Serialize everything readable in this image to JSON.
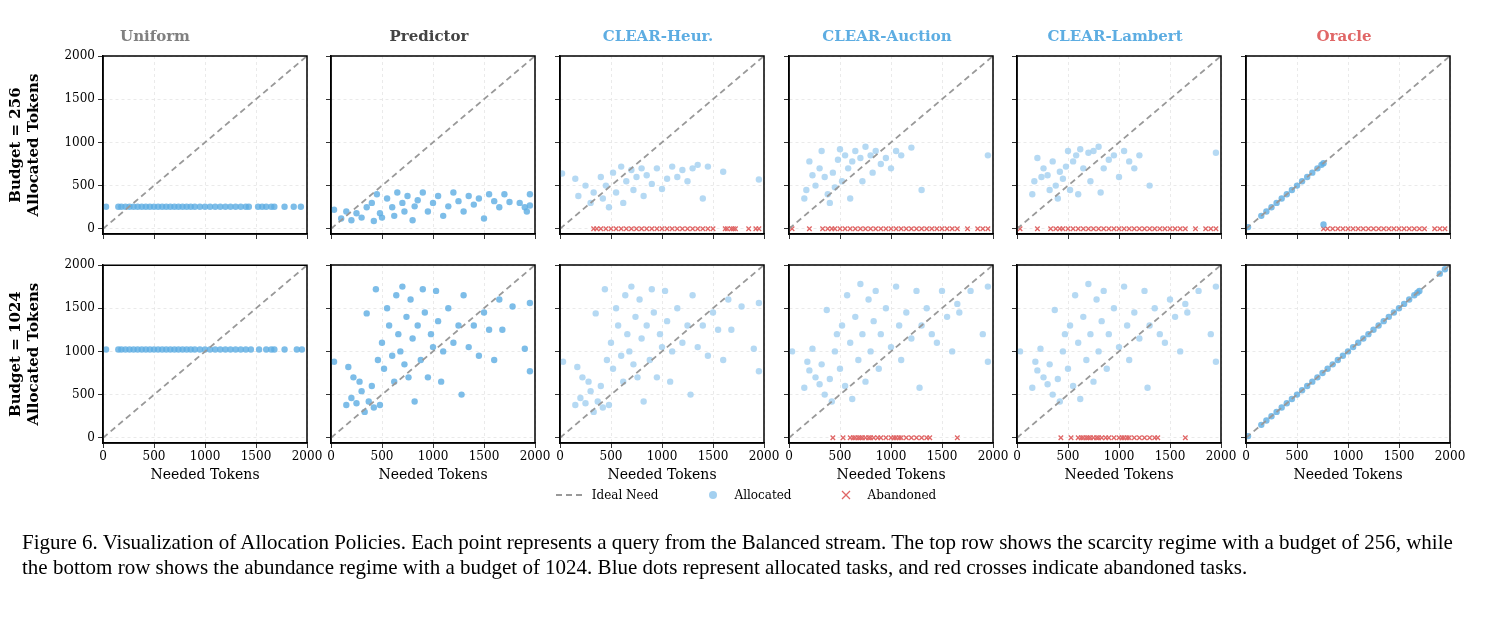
{
  "chart_data": [
    {
      "type": "scatter",
      "title": "Uniform",
      "ylabel": "Budget = 256\nAllocated Tokens",
      "xlim": [
        0,
        2000
      ],
      "ylim": [
        -60,
        2000
      ],
      "xticks": [
        0,
        500,
        1000,
        1500,
        2000
      ],
      "yticks": [
        0,
        500,
        1000,
        1500,
        2000
      ],
      "grid": true,
      "tick_labels": "y",
      "series": [
        {
          "type": "line",
          "color": "#999999",
          "line_style": "dashed",
          "marker": "none",
          "x": [
            0,
            2000
          ],
          "values": [
            0,
            2000
          ]
        },
        {
          "type": "scatter",
          "color": "#5dade2",
          "marker": "circle",
          "x": [
            30,
            150,
            180,
            220,
            260,
            300,
            340,
            380,
            420,
            460,
            500,
            540,
            580,
            620,
            660,
            700,
            740,
            780,
            820,
            860,
            900,
            950,
            1000,
            1050,
            1100,
            1150,
            1200,
            1250,
            1300,
            1350,
            1400,
            1430,
            1520,
            1560,
            1600,
            1650,
            1680,
            1780,
            1870,
            1940
          ],
          "values": [
            256,
            256,
            256,
            256,
            256,
            256,
            256,
            256,
            256,
            256,
            256,
            256,
            256,
            256,
            256,
            256,
            256,
            256,
            256,
            256,
            256,
            256,
            256,
            256,
            256,
            256,
            256,
            256,
            256,
            256,
            256,
            256,
            256,
            256,
            256,
            256,
            256,
            256,
            256,
            256
          ]
        }
      ]
    },
    {
      "type": "scatter",
      "title": "Predictor",
      "xlim": [
        0,
        2000
      ],
      "ylim": [
        -60,
        2000
      ],
      "xticks": [
        0,
        500,
        1000,
        1500,
        2000
      ],
      "yticks": [
        0,
        500,
        1000,
        1500,
        2000
      ],
      "grid": true,
      "tick_labels": false,
      "series": [
        {
          "type": "line",
          "color": "#999999",
          "line_style": "dashed",
          "marker": "none",
          "x": [
            0,
            2000
          ],
          "values": [
            0,
            2000
          ]
        },
        {
          "type": "scatter",
          "color": "#5dade2",
          "marker": "circle",
          "x": [
            30,
            100,
            150,
            200,
            250,
            300,
            350,
            400,
            420,
            450,
            480,
            500,
            550,
            600,
            620,
            650,
            700,
            720,
            750,
            800,
            820,
            850,
            900,
            950,
            1000,
            1050,
            1100,
            1150,
            1200,
            1250,
            1300,
            1350,
            1400,
            1450,
            1500,
            1550,
            1600,
            1650,
            1700,
            1750,
            1850,
            1900,
            1920,
            1950,
            1950
          ],
          "values": [
            220,
            120,
            200,
            100,
            180,
            130,
            250,
            300,
            90,
            400,
            180,
            130,
            350,
            250,
            150,
            420,
            300,
            200,
            380,
            100,
            260,
            330,
            420,
            200,
            300,
            380,
            150,
            260,
            420,
            320,
            200,
            380,
            280,
            350,
            120,
            400,
            320,
            250,
            400,
            310,
            300,
            250,
            200,
            400,
            270
          ]
        }
      ]
    },
    {
      "type": "scatter",
      "title": "CLEAR-Heur.",
      "xlim": [
        0,
        2000
      ],
      "ylim": [
        -60,
        2000
      ],
      "xticks": [
        0,
        500,
        1000,
        1500,
        2000
      ],
      "yticks": [
        0,
        500,
        1000,
        1500,
        2000
      ],
      "grid": true,
      "tick_labels": false,
      "series": [
        {
          "type": "line",
          "color": "#999999",
          "line_style": "dashed",
          "marker": "none",
          "x": [
            0,
            2000
          ],
          "values": [
            0,
            2000
          ]
        },
        {
          "type": "scatter",
          "color": "#a3d0f0",
          "marker": "circle",
          "x": [
            20,
            150,
            180,
            250,
            300,
            330,
            400,
            420,
            450,
            480,
            520,
            550,
            600,
            620,
            650,
            700,
            720,
            750,
            800,
            820,
            850,
            900,
            950,
            1000,
            1050,
            1100,
            1150,
            1200,
            1250,
            1300,
            1350,
            1400,
            1450,
            1600,
            1950
          ],
          "values": [
            640,
            580,
            380,
            500,
            300,
            420,
            600,
            350,
            500,
            250,
            650,
            420,
            720,
            300,
            550,
            680,
            450,
            600,
            700,
            380,
            620,
            520,
            700,
            460,
            580,
            720,
            600,
            680,
            550,
            700,
            740,
            350,
            720,
            660,
            570
          ]
        },
        {
          "type": "scatter",
          "color": "#e06666",
          "marker": "cross",
          "x": [
            330,
            360,
            400,
            450,
            500,
            550,
            600,
            650,
            700,
            750,
            800,
            850,
            900,
            950,
            1000,
            1050,
            1100,
            1150,
            1200,
            1250,
            1300,
            1350,
            1400,
            1450,
            1500,
            1620,
            1640,
            1680,
            1700,
            1720,
            1850,
            1920,
            1950
          ],
          "values": [
            0,
            0,
            0,
            0,
            0,
            0,
            0,
            0,
            0,
            0,
            0,
            0,
            0,
            0,
            0,
            0,
            0,
            0,
            0,
            0,
            0,
            0,
            0,
            0,
            0,
            0,
            0,
            0,
            0,
            0,
            0,
            0,
            0
          ]
        }
      ]
    },
    {
      "type": "scatter",
      "title": "CLEAR-Auction",
      "xlim": [
        0,
        2000
      ],
      "ylim": [
        -60,
        2000
      ],
      "xticks": [
        0,
        500,
        1000,
        1500,
        2000
      ],
      "yticks": [
        0,
        500,
        1000,
        1500,
        2000
      ],
      "grid": true,
      "tick_labels": false,
      "series": [
        {
          "type": "line",
          "color": "#999999",
          "line_style": "dashed",
          "marker": "none",
          "x": [
            0,
            2000
          ],
          "values": [
            0,
            2000
          ]
        },
        {
          "type": "scatter",
          "color": "#a3d0f0",
          "marker": "circle",
          "x": [
            150,
            170,
            200,
            230,
            260,
            300,
            320,
            350,
            380,
            400,
            430,
            450,
            480,
            500,
            520,
            550,
            580,
            600,
            620,
            650,
            700,
            720,
            750,
            800,
            820,
            850,
            900,
            950,
            1000,
            1050,
            1100,
            1200,
            1300,
            1950
          ],
          "values": [
            350,
            450,
            780,
            620,
            500,
            700,
            900,
            600,
            400,
            300,
            650,
            480,
            800,
            920,
            550,
            850,
            700,
            350,
            780,
            900,
            820,
            550,
            950,
            850,
            650,
            900,
            750,
            820,
            700,
            900,
            850,
            940,
            450,
            850
          ]
        },
        {
          "type": "scatter",
          "color": "#e06666",
          "marker": "cross",
          "x": [
            30,
            200,
            330,
            380,
            420,
            450,
            500,
            550,
            600,
            650,
            700,
            750,
            800,
            850,
            900,
            950,
            1000,
            1050,
            1100,
            1150,
            1200,
            1250,
            1300,
            1350,
            1400,
            1450,
            1500,
            1550,
            1600,
            1650,
            1750,
            1850,
            1900,
            1950
          ],
          "values": [
            0,
            0,
            0,
            0,
            0,
            0,
            0,
            0,
            0,
            0,
            0,
            0,
            0,
            0,
            0,
            0,
            0,
            0,
            0,
            0,
            0,
            0,
            0,
            0,
            0,
            0,
            0,
            0,
            0,
            0,
            0,
            0,
            0,
            0
          ]
        }
      ]
    },
    {
      "type": "scatter",
      "title": "CLEAR-Lambert",
      "xlim": [
        0,
        2000
      ],
      "ylim": [
        -60,
        2000
      ],
      "xticks": [
        0,
        500,
        1000,
        1500,
        2000
      ],
      "yticks": [
        0,
        500,
        1000,
        1500,
        2000
      ],
      "grid": true,
      "tick_labels": false,
      "series": [
        {
          "type": "line",
          "color": "#999999",
          "line_style": "dashed",
          "marker": "none",
          "x": [
            0,
            2000
          ],
          "values": [
            0,
            2000
          ]
        },
        {
          "type": "scatter",
          "color": "#a3d0f0",
          "marker": "circle",
          "x": [
            150,
            170,
            200,
            240,
            260,
            300,
            320,
            350,
            380,
            400,
            420,
            450,
            480,
            500,
            520,
            550,
            580,
            600,
            620,
            650,
            700,
            720,
            750,
            800,
            820,
            850,
            900,
            950,
            1000,
            1050,
            1100,
            1150,
            1200,
            1300,
            1950
          ],
          "values": [
            400,
            550,
            820,
            600,
            700,
            620,
            450,
            780,
            500,
            350,
            660,
            580,
            720,
            900,
            450,
            780,
            850,
            400,
            920,
            700,
            880,
            550,
            900,
            950,
            420,
            700,
            800,
            850,
            600,
            900,
            780,
            700,
            850,
            500,
            880
          ]
        },
        {
          "type": "scatter",
          "color": "#e06666",
          "marker": "cross",
          "x": [
            30,
            200,
            330,
            380,
            420,
            450,
            500,
            550,
            600,
            650,
            700,
            750,
            800,
            850,
            900,
            950,
            1000,
            1050,
            1100,
            1150,
            1200,
            1250,
            1300,
            1350,
            1400,
            1450,
            1500,
            1550,
            1600,
            1650,
            1750,
            1850,
            1900,
            1950
          ],
          "values": [
            0,
            0,
            0,
            0,
            0,
            0,
            0,
            0,
            0,
            0,
            0,
            0,
            0,
            0,
            0,
            0,
            0,
            0,
            0,
            0,
            0,
            0,
            0,
            0,
            0,
            0,
            0,
            0,
            0,
            0,
            0,
            0,
            0,
            0
          ]
        }
      ]
    },
    {
      "type": "scatter",
      "title": "Oracle",
      "xlim": [
        0,
        2000
      ],
      "ylim": [
        -60,
        2000
      ],
      "xticks": [
        0,
        500,
        1000,
        1500,
        2000
      ],
      "yticks": [
        0,
        500,
        1000,
        1500,
        2000
      ],
      "grid": true,
      "tick_labels": false,
      "series": [
        {
          "type": "line",
          "color": "#999999",
          "line_style": "dashed",
          "marker": "none",
          "x": [
            0,
            2000
          ],
          "values": [
            0,
            2000
          ]
        },
        {
          "type": "scatter",
          "color": "#5dade2",
          "marker": "circle",
          "x": [
            20,
            150,
            200,
            250,
            300,
            350,
            400,
            450,
            500,
            550,
            600,
            650,
            700,
            740,
            760,
            760
          ],
          "values": [
            20,
            150,
            200,
            250,
            300,
            350,
            400,
            450,
            500,
            550,
            600,
            650,
            700,
            740,
            760,
            50
          ]
        },
        {
          "type": "scatter",
          "color": "#e06666",
          "marker": "cross",
          "x": [
            760,
            800,
            850,
            900,
            950,
            1000,
            1050,
            1100,
            1150,
            1200,
            1250,
            1300,
            1350,
            1400,
            1450,
            1500,
            1550,
            1600,
            1650,
            1700,
            1750,
            1850,
            1900,
            1950
          ],
          "values": [
            0,
            0,
            0,
            0,
            0,
            0,
            0,
            0,
            0,
            0,
            0,
            0,
            0,
            0,
            0,
            0,
            0,
            0,
            0,
            0,
            0,
            0,
            0,
            0
          ]
        }
      ]
    },
    {
      "type": "scatter",
      "ylabel": "Budget = 1024\nAllocated Tokens",
      "xlabel": "Needed Tokens",
      "xlim": [
        0,
        2000
      ],
      "ylim": [
        -60,
        2000
      ],
      "xticks": [
        0,
        500,
        1000,
        1500,
        2000
      ],
      "yticks": [
        0,
        500,
        1000,
        1500,
        2000
      ],
      "grid": true,
      "series": [
        {
          "type": "line",
          "color": "#999999",
          "line_style": "dashed",
          "marker": "none",
          "x": [
            0,
            2000
          ],
          "values": [
            0,
            2000
          ]
        },
        {
          "type": "scatter",
          "color": "#5dade2",
          "marker": "circle",
          "x": [
            30,
            150,
            180,
            220,
            260,
            300,
            340,
            380,
            420,
            460,
            500,
            540,
            580,
            620,
            660,
            700,
            740,
            780,
            820,
            860,
            900,
            950,
            1000,
            1050,
            1100,
            1150,
            1200,
            1250,
            1300,
            1350,
            1400,
            1450,
            1530,
            1600,
            1650,
            1680,
            1780,
            1900,
            1950
          ],
          "values": [
            1024,
            1024,
            1024,
            1024,
            1024,
            1024,
            1024,
            1024,
            1024,
            1024,
            1024,
            1024,
            1024,
            1024,
            1024,
            1024,
            1024,
            1024,
            1024,
            1024,
            1024,
            1024,
            1024,
            1024,
            1024,
            1024,
            1024,
            1024,
            1024,
            1024,
            1024,
            1024,
            1024,
            1024,
            1024,
            1024,
            1024,
            1024,
            1024
          ]
        }
      ]
    },
    {
      "type": "scatter",
      "xlabel": "Needed Tokens",
      "xlim": [
        0,
        2000
      ],
      "ylim": [
        -60,
        2000
      ],
      "xticks": [
        0,
        500,
        1000,
        1500,
        2000
      ],
      "yticks": [
        0,
        500,
        1000,
        1500,
        2000
      ],
      "grid": true,
      "tick_labels": "x",
      "series": [
        {
          "type": "line",
          "color": "#999999",
          "line_style": "dashed",
          "marker": "none",
          "x": [
            0,
            2000
          ],
          "values": [
            0,
            2000
          ]
        },
        {
          "type": "scatter",
          "color": "#5dade2",
          "marker": "circle",
          "x": [
            30,
            150,
            170,
            200,
            220,
            250,
            280,
            300,
            330,
            350,
            370,
            400,
            420,
            440,
            460,
            480,
            500,
            520,
            550,
            570,
            600,
            620,
            640,
            660,
            680,
            700,
            720,
            740,
            760,
            780,
            800,
            820,
            850,
            880,
            900,
            920,
            950,
            980,
            1000,
            1030,
            1050,
            1080,
            1100,
            1150,
            1200,
            1250,
            1280,
            1300,
            1350,
            1400,
            1450,
            1500,
            1550,
            1600,
            1650,
            1680,
            1780,
            1900,
            1950,
            1950
          ],
          "values": [
            880,
            380,
            820,
            460,
            700,
            400,
            650,
            540,
            300,
            1440,
            420,
            600,
            350,
            1720,
            900,
            380,
            1100,
            800,
            1500,
            1300,
            950,
            650,
            1650,
            1200,
            1000,
            1750,
            850,
            1400,
            700,
            1600,
            1150,
            420,
            1300,
            900,
            1720,
            1450,
            700,
            1200,
            1050,
            1700,
            1350,
            650,
            1000,
            1500,
            1100,
            1300,
            500,
            1650,
            1050,
            1300,
            950,
            1450,
            1250,
            900,
            1600,
            1250,
            1520,
            1030,
            1560,
            770
          ]
        }
      ]
    },
    {
      "type": "scatter",
      "xlabel": "Needed Tokens",
      "xlim": [
        0,
        2000
      ],
      "ylim": [
        -60,
        2000
      ],
      "xticks": [
        0,
        500,
        1000,
        1500,
        2000
      ],
      "yticks": [
        0,
        500,
        1000,
        1500,
        2000
      ],
      "grid": true,
      "tick_labels": "x",
      "series": [
        {
          "type": "line",
          "color": "#999999",
          "line_style": "dashed",
          "marker": "none",
          "x": [
            0,
            2000
          ],
          "values": [
            0,
            2000
          ]
        },
        {
          "type": "scatter",
          "color": "#a3d0f0",
          "marker": "circle",
          "x": [
            30,
            150,
            170,
            200,
            220,
            250,
            280,
            300,
            330,
            350,
            370,
            400,
            420,
            440,
            460,
            480,
            500,
            520,
            550,
            570,
            600,
            620,
            640,
            660,
            680,
            700,
            720,
            740,
            760,
            780,
            800,
            820,
            850,
            880,
            900,
            920,
            950,
            980,
            1000,
            1030,
            1050,
            1080,
            1100,
            1150,
            1200,
            1250,
            1280,
            1300,
            1350,
            1400,
            1450,
            1500,
            1550,
            1600,
            1650,
            1680,
            1780,
            1900,
            1950,
            1950
          ],
          "values": [
            880,
            380,
            820,
            460,
            700,
            400,
            650,
            540,
            300,
            1440,
            420,
            600,
            350,
            1720,
            900,
            380,
            1100,
            800,
            1500,
            1300,
            950,
            650,
            1650,
            1200,
            1000,
            1750,
            850,
            1400,
            700,
            1600,
            1150,
            420,
            1300,
            900,
            1720,
            1450,
            700,
            1200,
            1050,
            1700,
            1350,
            650,
            1000,
            1500,
            1100,
            1300,
            500,
            1650,
            1050,
            1300,
            950,
            1450,
            1250,
            900,
            1600,
            1250,
            1520,
            1030,
            1560,
            770
          ]
        }
      ]
    },
    {
      "type": "scatter",
      "xlabel": "Needed Tokens",
      "xlim": [
        0,
        2000
      ],
      "ylim": [
        -60,
        2000
      ],
      "xticks": [
        0,
        500,
        1000,
        1500,
        2000
      ],
      "yticks": [
        0,
        500,
        1000,
        1500,
        2000
      ],
      "grid": true,
      "tick_labels": "x",
      "legend": "bottom",
      "series": [
        {
          "type": "line",
          "name": "Ideal Need",
          "color": "#999999",
          "line_style": "dashed",
          "marker": "none",
          "x": [
            0,
            2000
          ],
          "values": [
            0,
            2000
          ]
        },
        {
          "type": "scatter",
          "name": "Allocated",
          "color": "#a3d0f0",
          "marker": "circle",
          "x": [
            30,
            150,
            180,
            200,
            230,
            260,
            300,
            320,
            350,
            370,
            400,
            420,
            450,
            470,
            500,
            520,
            550,
            570,
            600,
            620,
            650,
            680,
            700,
            720,
            750,
            780,
            800,
            830,
            850,
            880,
            900,
            950,
            1000,
            1050,
            1080,
            1100,
            1150,
            1200,
            1250,
            1280,
            1300,
            1350,
            1400,
            1450,
            1500,
            1550,
            1600,
            1650,
            1670,
            1780,
            1900,
            1950,
            1950
          ],
          "values": [
            1000,
            580,
            880,
            780,
            1030,
            700,
            620,
            850,
            500,
            1480,
            680,
            420,
            1000,
            1200,
            800,
            1300,
            600,
            1650,
            1100,
            450,
            1400,
            900,
            1780,
            1200,
            650,
            1600,
            1000,
            1350,
            1700,
            800,
            1200,
            1500,
            1050,
            1750,
            1300,
            900,
            1450,
            1150,
            1700,
            580,
            1300,
            1500,
            1200,
            1100,
            1700,
            1400,
            1000,
            1550,
            1450,
            1700,
            1200,
            1750,
            880
          ]
        },
        {
          "type": "scatter",
          "name": "Abandoned",
          "color": "#e06666",
          "marker": "cross",
          "x": [
            430,
            530,
            600,
            630,
            650,
            680,
            700,
            720,
            750,
            780,
            800,
            830,
            870,
            900,
            950,
            1000,
            1030,
            1050,
            1080,
            1100,
            1150,
            1200,
            1250,
            1300,
            1350,
            1380,
            1650
          ],
          "values": [
            0,
            0,
            0,
            0,
            0,
            0,
            0,
            0,
            0,
            0,
            0,
            0,
            0,
            0,
            0,
            0,
            0,
            0,
            0,
            0,
            0,
            0,
            0,
            0,
            0,
            0,
            0
          ]
        }
      ]
    },
    {
      "type": "scatter",
      "xlabel": "Needed Tokens",
      "xlim": [
        0,
        2000
      ],
      "ylim": [
        -60,
        2000
      ],
      "xticks": [
        0,
        500,
        1000,
        1500,
        2000
      ],
      "yticks": [
        0,
        500,
        1000,
        1500,
        2000
      ],
      "grid": true,
      "tick_labels": "x",
      "series": [
        {
          "type": "line",
          "color": "#999999",
          "line_style": "dashed",
          "marker": "none",
          "x": [
            0,
            2000
          ],
          "values": [
            0,
            2000
          ]
        },
        {
          "type": "scatter",
          "color": "#a3d0f0",
          "marker": "circle",
          "x": [
            30,
            150,
            180,
            200,
            230,
            260,
            300,
            320,
            350,
            370,
            400,
            420,
            450,
            470,
            500,
            520,
            550,
            570,
            600,
            620,
            650,
            680,
            700,
            720,
            750,
            780,
            800,
            830,
            850,
            880,
            900,
            950,
            1000,
            1050,
            1080,
            1100,
            1150,
            1200,
            1250,
            1280,
            1300,
            1350,
            1400,
            1450,
            1500,
            1550,
            1600,
            1650,
            1670,
            1780,
            1900,
            1950,
            1950
          ],
          "values": [
            1000,
            580,
            880,
            780,
            1030,
            700,
            620,
            850,
            500,
            1480,
            680,
            420,
            1000,
            1200,
            800,
            1300,
            600,
            1650,
            1100,
            450,
            1400,
            900,
            1780,
            1200,
            650,
            1600,
            1000,
            1350,
            1700,
            800,
            1200,
            1500,
            1050,
            1750,
            1300,
            900,
            1450,
            1150,
            1700,
            580,
            1300,
            1500,
            1200,
            1100,
            1600,
            1400,
            1000,
            1550,
            1450,
            1700,
            1200,
            1750,
            880
          ]
        },
        {
          "type": "scatter",
          "color": "#e06666",
          "marker": "cross",
          "x": [
            430,
            530,
            600,
            630,
            650,
            680,
            700,
            720,
            750,
            780,
            800,
            830,
            870,
            900,
            950,
            1000,
            1030,
            1050,
            1080,
            1100,
            1150,
            1200,
            1250,
            1300,
            1350,
            1380,
            1650
          ],
          "values": [
            0,
            0,
            0,
            0,
            0,
            0,
            0,
            0,
            0,
            0,
            0,
            0,
            0,
            0,
            0,
            0,
            0,
            0,
            0,
            0,
            0,
            0,
            0,
            0,
            0,
            0,
            0
          ]
        }
      ]
    },
    {
      "type": "scatter",
      "xlabel": "Needed Tokens",
      "xlim": [
        0,
        2000
      ],
      "ylim": [
        -60,
        2000
      ],
      "xticks": [
        0,
        500,
        1000,
        1500,
        2000
      ],
      "yticks": [
        0,
        500,
        1000,
        1500,
        2000
      ],
      "grid": true,
      "tick_labels": "x",
      "annotations": [
        "Figure 6. Visualization of Allocation Policies. Each point represents a query from the Balanced stream. The top row shows the scarcity regime with a budget of 256, while the bottom row shows the abundance regime with a budget of 1024. Blue dots represent allocated tasks, and red crosses indicate abandoned tasks."
      ],
      "series": [
        {
          "type": "line",
          "color": "#999999",
          "line_style": "dashed",
          "marker": "none",
          "x": [
            0,
            2000
          ],
          "values": [
            0,
            2000
          ]
        },
        {
          "type": "scatter",
          "color": "#5dade2",
          "marker": "circle",
          "x": [
            20,
            150,
            200,
            250,
            300,
            350,
            400,
            450,
            500,
            550,
            600,
            650,
            700,
            750,
            800,
            850,
            900,
            950,
            1000,
            1050,
            1100,
            1150,
            1200,
            1250,
            1300,
            1350,
            1400,
            1450,
            1500,
            1550,
            1600,
            1650,
            1680,
            1700,
            1900,
            1950
          ],
          "values": [
            20,
            150,
            200,
            250,
            300,
            350,
            400,
            450,
            500,
            550,
            600,
            650,
            700,
            750,
            800,
            850,
            900,
            950,
            1000,
            1050,
            1100,
            1150,
            1200,
            1250,
            1300,
            1350,
            1400,
            1450,
            1500,
            1550,
            1600,
            1650,
            1680,
            1700,
            1900,
            1950
          ]
        }
      ]
    }
  ]
}
